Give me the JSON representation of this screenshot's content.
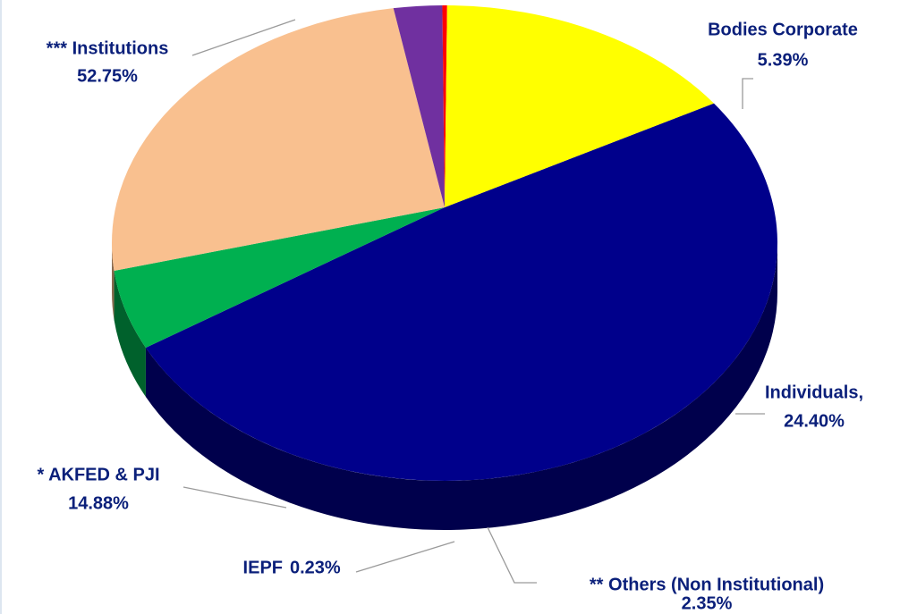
{
  "chart_data": {
    "type": "pie",
    "categories": [
      "*** Institutions",
      "Bodies Corporate",
      "Individuals,",
      "** Others (Non Institutional)",
      "IEPF",
      "* AKFED & PJI"
    ],
    "values": [
      52.75,
      5.39,
      24.4,
      2.35,
      0.23,
      14.88
    ],
    "value_labels": [
      "52.75%",
      "5.39%",
      "24.40%",
      "2.35%",
      "0.23%",
      "14.88%"
    ],
    "colors": [
      "#00008b",
      "#00b050",
      "#f9c08f",
      "#7030a0",
      "#ff0000",
      "#ffff00"
    ]
  }
}
